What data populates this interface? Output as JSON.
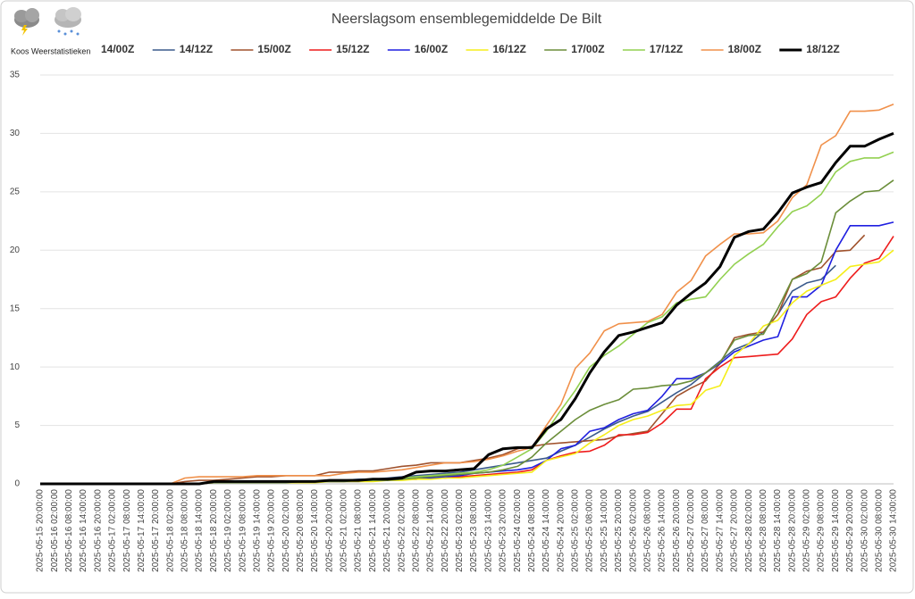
{
  "chart_data": {
    "type": "line",
    "title": "Neerslagsom ensemblegemiddelde De Bilt",
    "source": "Koos Weerstatistieken",
    "categories": [
      "2025-05-15 20:00:00",
      "2025-05-16 02:00:00",
      "2025-05-16 08:00:00",
      "2025-05-16 14:00:00",
      "2025-05-16 20:00:00",
      "2025-05-17 02:00:00",
      "2025-05-17 08:00:00",
      "2025-05-17 14:00:00",
      "2025-05-17 20:00:00",
      "2025-05-18 02:00:00",
      "2025-05-18 08:00:00",
      "2025-05-18 14:00:00",
      "2025-05-18 20:00:00",
      "2025-05-19 02:00:00",
      "2025-05-19 08:00:00",
      "2025-05-19 14:00:00",
      "2025-05-19 20:00:00",
      "2025-05-20 02:00:00",
      "2025-05-20 08:00:00",
      "2025-05-20 14:00:00",
      "2025-05-20 20:00:00",
      "2025-05-21 02:00:00",
      "2025-05-21 08:00:00",
      "2025-05-21 14:00:00",
      "2025-05-21 20:00:00",
      "2025-05-22 02:00:00",
      "2025-05-22 08:00:00",
      "2025-05-22 14:00:00",
      "2025-05-22 20:00:00",
      "2025-05-23 02:00:00",
      "2025-05-23 08:00:00",
      "2025-05-23 14:00:00",
      "2025-05-23 20:00:00",
      "2025-05-24 02:00:00",
      "2025-05-24 08:00:00",
      "2025-05-24 14:00:00",
      "2025-05-24 20:00:00",
      "2025-05-25 02:00:00",
      "2025-05-25 08:00:00",
      "2025-05-25 14:00:00",
      "2025-05-25 20:00:00",
      "2025-05-26 02:00:00",
      "2025-05-26 08:00:00",
      "2025-05-26 14:00:00",
      "2025-05-26 20:00:00",
      "2025-05-27 02:00:00",
      "2025-05-27 08:00:00",
      "2025-05-27 14:00:00",
      "2025-05-27 20:00:00",
      "2025-05-28 02:00:00",
      "2025-05-28 08:00:00",
      "2025-05-28 14:00:00",
      "2025-05-28 20:00:00",
      "2025-05-29 02:00:00",
      "2025-05-29 08:00:00",
      "2025-05-29 14:00:00",
      "2025-05-29 20:00:00",
      "2025-05-30 02:00:00",
      "2025-05-30 08:00:00",
      "2025-05-30 14:00:00"
    ],
    "series": [
      {
        "name": "14/00Z",
        "values": [
          null,
          null,
          null,
          null,
          null,
          null,
          null,
          null,
          null,
          null,
          null,
          null,
          null,
          null,
          null,
          null,
          null,
          null,
          null,
          null,
          null,
          null,
          null,
          null,
          null,
          null,
          null,
          null,
          null,
          null,
          null,
          null,
          null,
          null,
          null,
          null,
          null,
          null,
          null,
          null,
          null,
          null,
          null,
          null,
          null,
          null,
          null,
          null,
          null,
          null,
          null,
          null,
          null,
          null,
          null,
          null,
          null,
          null,
          null,
          null
        ]
      },
      {
        "name": "14/12Z",
        "color": "#3a5a8c",
        "values": [
          0,
          0,
          0,
          0,
          0,
          0,
          0,
          0,
          0,
          0,
          0,
          0,
          0.1,
          0.1,
          0.1,
          0.1,
          0.1,
          0.2,
          0.2,
          0.2,
          0.3,
          0.3,
          0.4,
          0.4,
          0.5,
          0.6,
          0.7,
          0.8,
          0.9,
          1.0,
          1.2,
          1.4,
          1.6,
          1.8,
          2.0,
          2.2,
          2.8,
          3.3,
          4.0,
          4.7,
          5.3,
          5.8,
          6.2,
          7.0,
          7.8,
          8.5,
          9.5,
          10.5,
          11.5,
          12.0,
          13.0,
          14.5,
          16.5,
          17.2,
          17.5,
          18.7,
          null,
          null,
          null,
          null
        ]
      },
      {
        "name": "15/00Z",
        "color": "#a0522d",
        "values": [
          0,
          0,
          0,
          0,
          0,
          0,
          0,
          0,
          0,
          0,
          0.2,
          0.3,
          0.3,
          0.4,
          0.5,
          0.6,
          0.6,
          0.7,
          0.7,
          0.7,
          1.0,
          1.0,
          1.1,
          1.1,
          1.3,
          1.5,
          1.6,
          1.8,
          1.8,
          1.8,
          2.0,
          2.2,
          2.5,
          3.0,
          3.2,
          3.4,
          3.5,
          3.6,
          3.7,
          3.8,
          4.1,
          4.3,
          4.5,
          6.0,
          7.5,
          8.2,
          8.8,
          10.3,
          12.5,
          12.8,
          13.0,
          14.5,
          17.5,
          18.2,
          18.5,
          19.9,
          20.0,
          21.3,
          null,
          null
        ]
      },
      {
        "name": "15/12Z",
        "color": "#ee1c1c",
        "values": [
          0,
          0,
          0,
          0,
          0,
          0,
          0,
          0,
          0,
          0,
          0,
          0,
          0.1,
          0.1,
          0.1,
          0.1,
          0.1,
          0.1,
          0.2,
          0.2,
          0.2,
          0.2,
          0.3,
          0.3,
          0.3,
          0.4,
          0.4,
          0.5,
          0.5,
          0.6,
          0.7,
          0.8,
          0.9,
          1.0,
          1.2,
          2.0,
          2.4,
          2.7,
          2.8,
          3.3,
          4.2,
          4.2,
          4.4,
          5.2,
          6.4,
          6.4,
          9.0,
          10.0,
          10.8,
          10.9,
          11.0,
          11.1,
          12.4,
          14.5,
          15.6,
          16.0,
          17.6,
          18.9,
          19.3,
          21.2
        ]
      },
      {
        "name": "16/00Z",
        "color": "#1f1fe0",
        "values": [
          0,
          0,
          0,
          0,
          0,
          0,
          0,
          0,
          0,
          0,
          0,
          0,
          0.1,
          0.1,
          0.1,
          0.1,
          0.1,
          0.1,
          0.1,
          0.2,
          0.2,
          0.2,
          0.2,
          0.3,
          0.3,
          0.4,
          0.4,
          0.5,
          0.6,
          0.7,
          0.9,
          1.0,
          1.1,
          1.2,
          1.4,
          2.0,
          3.0,
          3.3,
          4.5,
          4.8,
          5.5,
          6.0,
          6.3,
          7.5,
          9.0,
          9.0,
          9.5,
          10.3,
          11.3,
          11.8,
          12.3,
          12.6,
          16.0,
          16.0,
          17.0,
          20.0,
          22.1,
          22.1,
          22.1,
          22.4
        ]
      },
      {
        "name": "16/12Z",
        "color": "#f5ee1a",
        "values": [
          0,
          0,
          0,
          0,
          0,
          0,
          0,
          0,
          0,
          0,
          0,
          0,
          0.1,
          0.1,
          0.1,
          0.1,
          0.1,
          0.1,
          0.1,
          0.1,
          0.2,
          0.2,
          0.2,
          0.2,
          0.3,
          0.3,
          0.4,
          0.4,
          0.5,
          0.5,
          0.6,
          0.7,
          0.8,
          0.9,
          1.0,
          2.0,
          2.3,
          2.6,
          3.5,
          4.2,
          5.0,
          5.5,
          5.8,
          6.3,
          6.7,
          6.8,
          8.0,
          8.4,
          11.0,
          12.0,
          13.5,
          14.0,
          15.5,
          16.5,
          17.0,
          17.5,
          18.6,
          18.8,
          19.0,
          20.0
        ]
      },
      {
        "name": "17/00Z",
        "color": "#6b8e3a",
        "values": [
          0,
          0,
          0,
          0,
          0,
          0,
          0,
          0,
          0,
          0,
          0,
          0,
          0.1,
          0.1,
          0.1,
          0.1,
          0.1,
          0.1,
          0.2,
          0.2,
          0.2,
          0.2,
          0.3,
          0.3,
          0.3,
          0.4,
          0.5,
          0.6,
          0.7,
          0.8,
          0.9,
          1.0,
          1.2,
          1.5,
          2.3,
          3.5,
          4.5,
          5.5,
          6.3,
          6.8,
          7.2,
          8.1,
          8.2,
          8.4,
          8.5,
          8.8,
          9.5,
          10.4,
          12.3,
          12.7,
          12.8,
          15.0,
          17.5,
          18.0,
          19.0,
          23.2,
          24.2,
          25.0,
          25.1,
          26.0
        ]
      },
      {
        "name": "17/12Z",
        "color": "#92d050",
        "values": [
          0,
          0,
          0,
          0,
          0,
          0,
          0,
          0,
          0,
          0,
          0,
          0,
          0.2,
          0.2,
          0.2,
          0.2,
          0.2,
          0.2,
          0.2,
          0.2,
          0.3,
          0.3,
          0.3,
          0.3,
          0.4,
          0.5,
          0.6,
          0.7,
          0.8,
          0.9,
          1.0,
          1.2,
          1.6,
          2.3,
          3.0,
          4.5,
          6.3,
          8.0,
          10.0,
          11.0,
          11.8,
          12.8,
          13.8,
          14.3,
          15.5,
          15.8,
          16.0,
          17.5,
          18.8,
          19.7,
          20.5,
          22.0,
          23.3,
          23.8,
          24.8,
          26.7,
          27.6,
          27.9,
          27.9,
          28.4
        ]
      },
      {
        "name": "18/00Z",
        "color": "#f0904a",
        "values": [
          0,
          0,
          0,
          0,
          0,
          0,
          0,
          0,
          0,
          0,
          0.5,
          0.6,
          0.6,
          0.6,
          0.6,
          0.7,
          0.7,
          0.7,
          0.7,
          0.7,
          0.7,
          0.9,
          1.0,
          1.0,
          1.1,
          1.2,
          1.4,
          1.6,
          1.8,
          1.8,
          1.9,
          2.1,
          2.4,
          2.8,
          3.1,
          5.0,
          6.8,
          9.9,
          11.2,
          13.1,
          13.7,
          13.8,
          13.9,
          14.5,
          16.4,
          17.4,
          19.5,
          20.5,
          21.4,
          21.4,
          21.5,
          22.5,
          24.5,
          25.6,
          29.0,
          29.8,
          31.9,
          31.9,
          32.0,
          32.5
        ]
      },
      {
        "name": "18/12Z",
        "color": "#000000",
        "width": 3,
        "values": [
          0,
          0,
          0,
          0,
          0,
          0,
          0,
          0,
          0,
          0,
          0,
          0,
          0.2,
          0.2,
          0.2,
          0.2,
          0.2,
          0.2,
          0.2,
          0.2,
          0.3,
          0.3,
          0.3,
          0.4,
          0.4,
          0.5,
          1.0,
          1.1,
          1.1,
          1.2,
          1.3,
          2.5,
          3.0,
          3.1,
          3.1,
          4.7,
          5.5,
          7.3,
          9.5,
          11.3,
          12.7,
          13.0,
          13.4,
          13.8,
          15.3,
          16.3,
          17.2,
          18.6,
          21.1,
          21.6,
          21.8,
          23.2,
          24.9,
          25.4,
          25.8,
          27.5,
          28.9,
          28.9,
          29.5,
          30.0
        ]
      }
    ],
    "ylim": [
      0,
      35
    ],
    "yticks": [
      0,
      5,
      10,
      15,
      20,
      25,
      30,
      35
    ],
    "grid": true
  }
}
